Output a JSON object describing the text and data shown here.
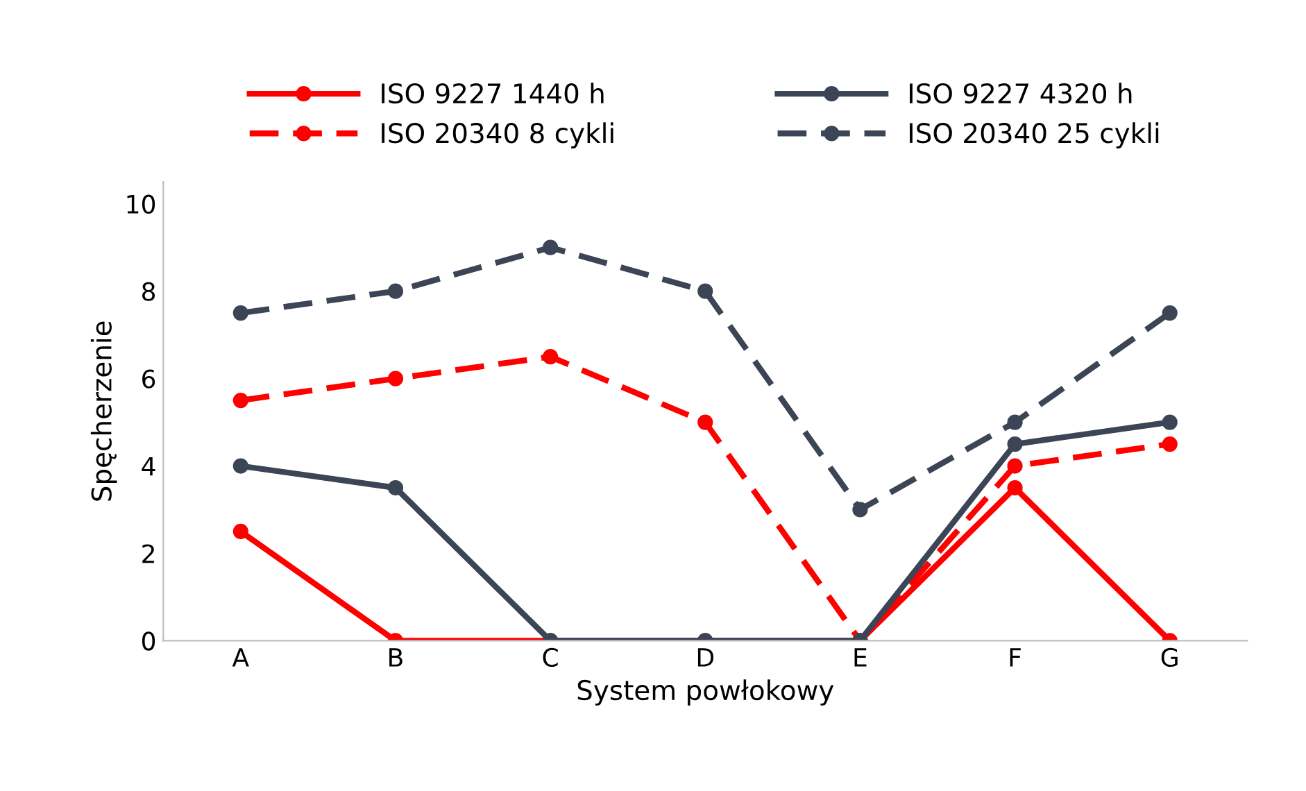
{
  "chart_data": {
    "type": "line",
    "xlabel": "System powłokowy",
    "ylabel": "Spęcherzenie",
    "categories": [
      "A",
      "B",
      "C",
      "D",
      "E",
      "F",
      "G"
    ],
    "series": [
      {
        "name": "ISO 9227 1440 h",
        "color": "#ff0000",
        "line_style": "solid",
        "values": [
          2.5,
          0,
          0,
          0,
          0,
          3.5,
          0
        ]
      },
      {
        "name": "ISO 20340 8 cykli",
        "color": "#ff0000",
        "line_style": "dashed",
        "values": [
          5.5,
          6,
          6.5,
          5,
          0,
          4,
          4.5
        ]
      },
      {
        "name": "ISO 9227 4320 h",
        "color": "#3b4556",
        "line_style": "solid",
        "values": [
          4,
          3.5,
          0,
          0,
          0,
          4.5,
          5
        ]
      },
      {
        "name": "ISO 20340 25 cykli",
        "color": "#3b4556",
        "line_style": "dashed",
        "values": [
          7.5,
          8,
          9,
          8,
          3,
          5,
          7.5
        ]
      }
    ],
    "ylim": [
      0,
      10.5
    ],
    "yticks": [
      0,
      2,
      4,
      6,
      8,
      10
    ],
    "grid": false,
    "legend": "top",
    "marker": "circle"
  }
}
